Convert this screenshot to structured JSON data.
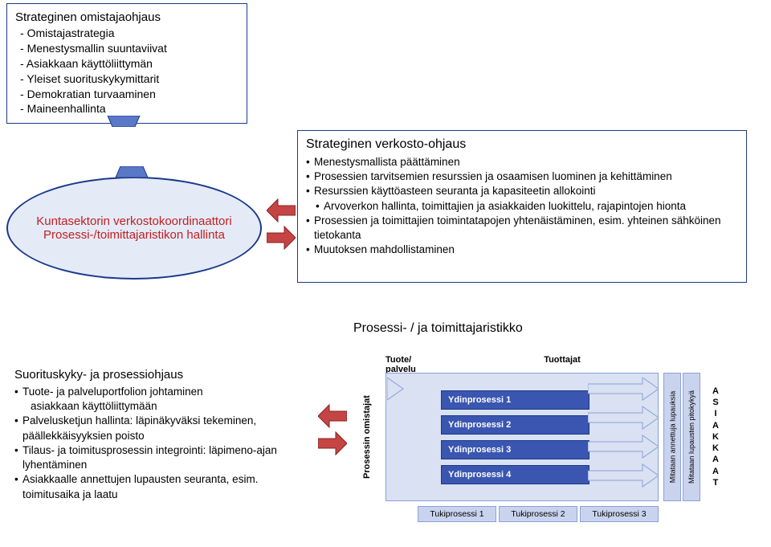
{
  "colors": {
    "borderBlue": "#1a3a8a",
    "ellipseFill": "#e5eaf7",
    "ellipseText": "#c02020",
    "arrowRed": "#b53030",
    "arrowRedDark": "#8a2020",
    "mapBg": "#d9e1f2",
    "barBlue": "#3a56b0",
    "lightBlue": "#c9d3ee",
    "trapBlue": "#5a78c8"
  },
  "topStrategic": {
    "title": "Strateginen omistajaohjaus",
    "items": [
      "Omistajastrategia",
      "Menestysmallin suuntaviivat",
      "Asiakkaan käyttöliittymän",
      "Yleiset suorituskykymittarit",
      "Demokratian turvaaminen",
      "Maineenhallinta"
    ]
  },
  "ellipse": {
    "line1": "Kuntasektorin verkostokoordinaattori",
    "line2": "Prosessi-/toimittajaristikon hallinta"
  },
  "verkosto": {
    "title": "Strateginen verkosto-ohjaus",
    "items": [
      {
        "text": "Menestysmallista päättäminen",
        "indent": false
      },
      {
        "text": "Prosessien tarvitsemien resurssien ja osaamisen luominen ja kehittäminen",
        "indent": false
      },
      {
        "text": "Resurssien käyttöasteen seuranta ja kapasiteetin allokointi",
        "indent": false
      },
      {
        "text": "Arvoverkon hallinta, toimittajien ja asiakkaiden luokittelu, rajapintojen hionta",
        "indent": true
      },
      {
        "text": "Prosessien ja toimittajien toimintatapojen yhtenäistäminen, esim. yhteinen sähköinen tietokanta",
        "indent": false
      },
      {
        "text": "Muutoksen mahdollistaminen",
        "indent": false
      }
    ]
  },
  "suoritus": {
    "title": "Suorituskyky-  ja prosessiohjaus",
    "items": [
      {
        "text": "Tuote- ja palveluportfolion johtaminen",
        "bullet": true
      },
      {
        "text": "asiakkaan käyttöliittymään",
        "bullet": false
      },
      {
        "text": "Palvelusketjun hallinta: läpinäkyväksi tekeminen, päällekkäisyyksien poisto",
        "bullet": true
      },
      {
        "text": "Tilaus- ja toimitusprosessin integrointi: läpimeno-ajan lyhentäminen",
        "bullet": true
      },
      {
        "text": "Asiakkaalle annettujen lupausten seuranta, esim. toimitusaika ja laatu",
        "bullet": true
      }
    ]
  },
  "processMap": {
    "title": "Prosessi- / ja toimittajaristikko",
    "leftLabel": "Prosessin omistajat",
    "top1": "Tuote/",
    "top1b": "palvelu",
    "top2": "Tuottajat",
    "coreProcesses": [
      "Ydinprosessi 1",
      "Ydinprosessi 2",
      "Ydinprosessi 3",
      "Ydinprosessi 4"
    ],
    "supportProcesses": [
      "Tukiprosessi 1",
      "Tukiprosessi 2",
      "Tukiprosessi 3"
    ],
    "rightCol1": "Mitataan annettuja lupauksia",
    "rightCol2": "Mitataan lupausten pitokykyä",
    "customer": "ASIAKKAAT"
  }
}
